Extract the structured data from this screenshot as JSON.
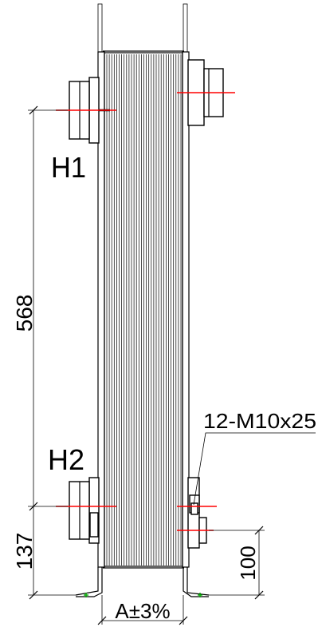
{
  "drawing": {
    "port_labels": {
      "h1": "H1",
      "h2": "H2"
    },
    "dimensions": {
      "port_spacing": "568",
      "bottom_port_height": "137",
      "right_port_height": "100",
      "width_tolerance": "A±3%",
      "bolts": "12-M10x25"
    },
    "colors": {
      "line": "#000000",
      "centerline": "#ff0000",
      "marker": "#00aa00"
    }
  }
}
